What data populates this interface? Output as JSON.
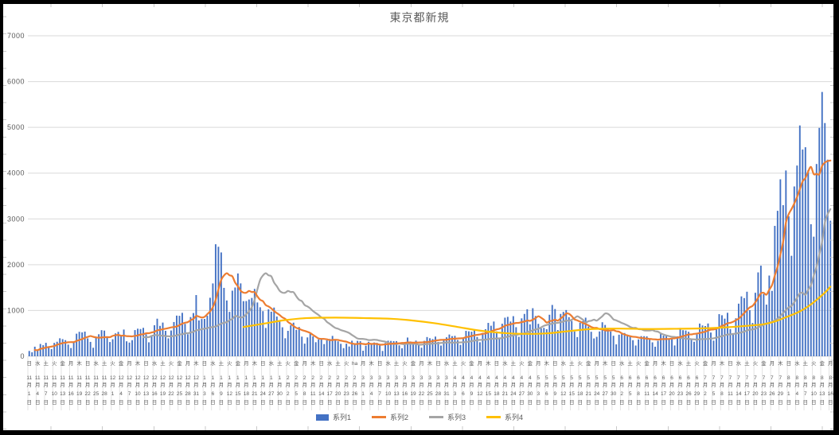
{
  "window": {
    "background": "#FFFFFF",
    "frame_color": "#000000",
    "sheet_gridline_tick_color": "#C9C9C9",
    "text_color": "#595959",
    "gridline_color": "#D9D9D9"
  },
  "chart_data": {
    "type": "bar",
    "title": "東京都新規",
    "xlabel": "",
    "ylabel": "",
    "ylim": [
      0,
      7000
    ],
    "ytick_interval": 1000,
    "yticks": [
      "0",
      "1000",
      "2000",
      "3000",
      "4000",
      "5000",
      "6000",
      "7000"
    ],
    "grid": "horizontal",
    "n_days": 289,
    "x_start_date": "11月1日",
    "x_end_date": "8月16日",
    "x_label_every_days": 3,
    "month_suffix": "月",
    "day_suffix": "日",
    "x_labels": [
      [
        "日",
        11,
        1
      ],
      [
        "水",
        11,
        4
      ],
      [
        "土",
        11,
        7
      ],
      [
        "火",
        11,
        10
      ],
      [
        "金",
        11,
        13
      ],
      [
        "月",
        11,
        16
      ],
      [
        "木",
        11,
        19
      ],
      [
        "日",
        11,
        22
      ],
      [
        "水",
        11,
        25
      ],
      [
        "土",
        11,
        28
      ],
      [
        "火",
        12,
        1
      ],
      [
        "金",
        12,
        4
      ],
      [
        "月",
        12,
        7
      ],
      [
        "木",
        12,
        10
      ],
      [
        "日",
        12,
        13
      ],
      [
        "水",
        12,
        16
      ],
      [
        "土",
        12,
        19
      ],
      [
        "火",
        12,
        22
      ],
      [
        "金",
        12,
        25
      ],
      [
        "月",
        12,
        28
      ],
      [
        "木",
        12,
        31
      ],
      [
        "日",
        1,
        3
      ],
      [
        "水",
        1,
        6
      ],
      [
        "土",
        1,
        9
      ],
      [
        "火",
        1,
        12
      ],
      [
        "金",
        1,
        15
      ],
      [
        "月",
        1,
        18
      ],
      [
        "木",
        1,
        21
      ],
      [
        "日",
        1,
        24
      ],
      [
        "水",
        1,
        27
      ],
      [
        "土",
        1,
        30
      ],
      [
        "火",
        2,
        2
      ],
      [
        "金",
        2,
        5
      ],
      [
        "月",
        2,
        8
      ],
      [
        "木",
        2,
        11
      ],
      [
        "日",
        2,
        14
      ],
      [
        "水",
        2,
        17
      ],
      [
        "土",
        2,
        20
      ],
      [
        "火",
        2,
        23
      ],
      [
        "ha",
        2,
        26
      ],
      [
        "月",
        3,
        1
      ],
      [
        "木",
        3,
        4
      ],
      [
        "日",
        3,
        7
      ],
      [
        "水",
        3,
        10
      ],
      [
        "土",
        3,
        13
      ],
      [
        "火",
        3,
        16
      ],
      [
        "金",
        3,
        19
      ],
      [
        "月",
        3,
        22
      ],
      [
        "木",
        3,
        25
      ],
      [
        "日",
        3,
        28
      ],
      [
        "水",
        3,
        31
      ],
      [
        "土",
        4,
        3
      ],
      [
        "火",
        4,
        6
      ],
      [
        "金",
        4,
        9
      ],
      [
        "月",
        4,
        12
      ],
      [
        "木",
        4,
        15
      ],
      [
        "日",
        4,
        18
      ],
      [
        "水",
        4,
        21
      ],
      [
        "土",
        4,
        24
      ],
      [
        "火",
        4,
        27
      ],
      [
        "金",
        4,
        30
      ],
      [
        "月",
        5,
        3
      ],
      [
        "木",
        5,
        6
      ],
      [
        "日",
        5,
        9
      ],
      [
        "水",
        5,
        12
      ],
      [
        "土",
        5,
        15
      ],
      [
        "火",
        5,
        18
      ],
      [
        "金",
        5,
        21
      ],
      [
        "月",
        5,
        24
      ],
      [
        "木",
        5,
        27
      ],
      [
        "日",
        5,
        30
      ],
      [
        "水",
        6,
        2
      ],
      [
        "土",
        6,
        5
      ],
      [
        "火",
        6,
        8
      ],
      [
        "金",
        6,
        11
      ],
      [
        "月",
        6,
        14
      ],
      [
        "木",
        6,
        17
      ],
      [
        "日",
        6,
        20
      ],
      [
        "水",
        6,
        23
      ],
      [
        "土",
        6,
        26
      ],
      [
        "火",
        6,
        29
      ],
      [
        "金",
        7,
        2
      ],
      [
        "月",
        7,
        5
      ],
      [
        "木",
        7,
        8
      ],
      [
        "日",
        7,
        11
      ],
      [
        "水",
        7,
        14
      ],
      [
        "土",
        7,
        17
      ],
      [
        "火",
        7,
        20
      ],
      [
        "金",
        7,
        23
      ],
      [
        "月",
        7,
        26
      ],
      [
        "木",
        7,
        29
      ],
      [
        "日",
        8,
        1
      ],
      [
        "水",
        8,
        4
      ],
      [
        "土",
        8,
        7
      ],
      [
        "火",
        8,
        10
      ],
      [
        "金",
        8,
        13
      ],
      [
        "月",
        8,
        16
      ]
    ],
    "series": [
      {
        "name": "系列1",
        "type": "bar",
        "color": "#4472C4",
        "values": [
          116,
          87,
          209,
          122,
          269,
          242,
          294,
          189,
          157,
          293,
          317,
          393,
          374,
          352,
          255,
          180,
          298,
          493,
          534,
          522,
          539,
          391,
          314,
          186,
          401,
          481,
          570,
          561,
          418,
          311,
          372,
          500,
          533,
          449,
          584,
          327,
          299,
          352,
          572,
          602,
          595,
          621,
          480,
          305,
          460,
          678,
          821,
          664,
          736,
          556,
          392,
          563,
          748,
          888,
          884,
          949,
          708,
          481,
          856,
          944,
          1337,
          783,
          814,
          816,
          884,
          1278,
          1591,
          2447,
          2392,
          2268,
          1494,
          1219,
          970,
          1433,
          1502,
          1809,
          1592,
          1204,
          1206,
          1240,
          1274,
          1471,
          1175,
          1070,
          986,
          618,
          1026,
          973,
          1064,
          868,
          769,
          633,
          393,
          556,
          676,
          734,
          577,
          639,
          429,
          276,
          412,
          491,
          434,
          307,
          369,
          371,
          266,
          350,
          378,
          445,
          353,
          327,
          272,
          178,
          275,
          213,
          340,
          270,
          337,
          329,
          121,
          232,
          316,
          279,
          301,
          293,
          237,
          116,
          290,
          340,
          335,
          330,
          331,
          239,
          175,
          300,
          409,
          323,
          303,
          342,
          256,
          187,
          337,
          420,
          394,
          376,
          430,
          313,
          234,
          364,
          414,
          475,
          440,
          446,
          355,
          249,
          399,
          555,
          545,
          537,
          570,
          421,
          306,
          510,
          591,
          729,
          667,
          759,
          543,
          405,
          711,
          843,
          861,
          759,
          876,
          635,
          425,
          828,
          925,
          1027,
          698,
          1050,
          879,
          708,
          609,
          621,
          591,
          907,
          1121,
          1032,
          573,
          925,
          969,
          1010,
          854,
          772,
          542,
          419,
          732,
          766,
          843,
          649,
          535,
          390,
          425,
          542,
          743,
          684,
          614,
          539,
          448,
          260,
          471,
          487,
          508,
          472,
          436,
          351,
          235,
          369,
          440,
          439,
          435,
          384,
          304,
          209,
          337,
          501,
          452,
          453,
          388,
          376,
          236,
          435,
          619,
          570,
          562,
          534,
          386,
          317,
          476,
          714,
          673,
          660,
          716,
          518,
          342,
          593,
          920,
          896,
          822,
          950,
          593,
          502,
          830,
          1149,
          1308,
          1271,
          1410,
          1008,
          727,
          1387,
          1832,
          1979,
          1359,
          1128,
          1763,
          1429,
          2848,
          3177,
          3865,
          3300,
          4058,
          3058,
          2195,
          3709,
          4166,
          5042,
          4515,
          4566,
          4066,
          2884,
          2612,
          4200,
          4989,
          5773,
          5094,
          4295,
          2962
        ]
      },
      {
        "name": "系列2",
        "type": "line",
        "color": "#ED7D31",
        "moving_average": {
          "window": 7,
          "shift_days": 0,
          "start_day": 2
        }
      },
      {
        "name": "系列3",
        "type": "line",
        "color": "#A5A5A5",
        "moving_average": {
          "window": 7,
          "shift_days": 14,
          "start_day": 41
        }
      },
      {
        "name": "系列4",
        "type": "line",
        "color": "#FFC000",
        "points": [
          [
            77,
            640
          ],
          [
            85,
            720
          ],
          [
            92,
            790
          ],
          [
            100,
            835
          ],
          [
            110,
            845
          ],
          [
            120,
            835
          ],
          [
            130,
            820
          ],
          [
            138,
            780
          ],
          [
            146,
            720
          ],
          [
            154,
            640
          ],
          [
            162,
            560
          ],
          [
            170,
            510
          ],
          [
            178,
            490
          ],
          [
            186,
            500
          ],
          [
            194,
            550
          ],
          [
            202,
            595
          ],
          [
            212,
            605
          ],
          [
            222,
            595
          ],
          [
            232,
            600
          ],
          [
            242,
            610
          ],
          [
            250,
            630
          ],
          [
            258,
            665
          ],
          [
            264,
            700
          ],
          [
            268,
            760
          ],
          [
            271,
            830
          ],
          [
            274,
            900
          ],
          [
            277,
            980
          ],
          [
            280,
            1090
          ],
          [
            283,
            1230
          ],
          [
            286,
            1390
          ],
          [
            288,
            1520
          ]
        ]
      }
    ],
    "legend": {
      "position": "bottom",
      "items": [
        "系列1",
        "系列2",
        "系列3",
        "系列4"
      ]
    }
  }
}
